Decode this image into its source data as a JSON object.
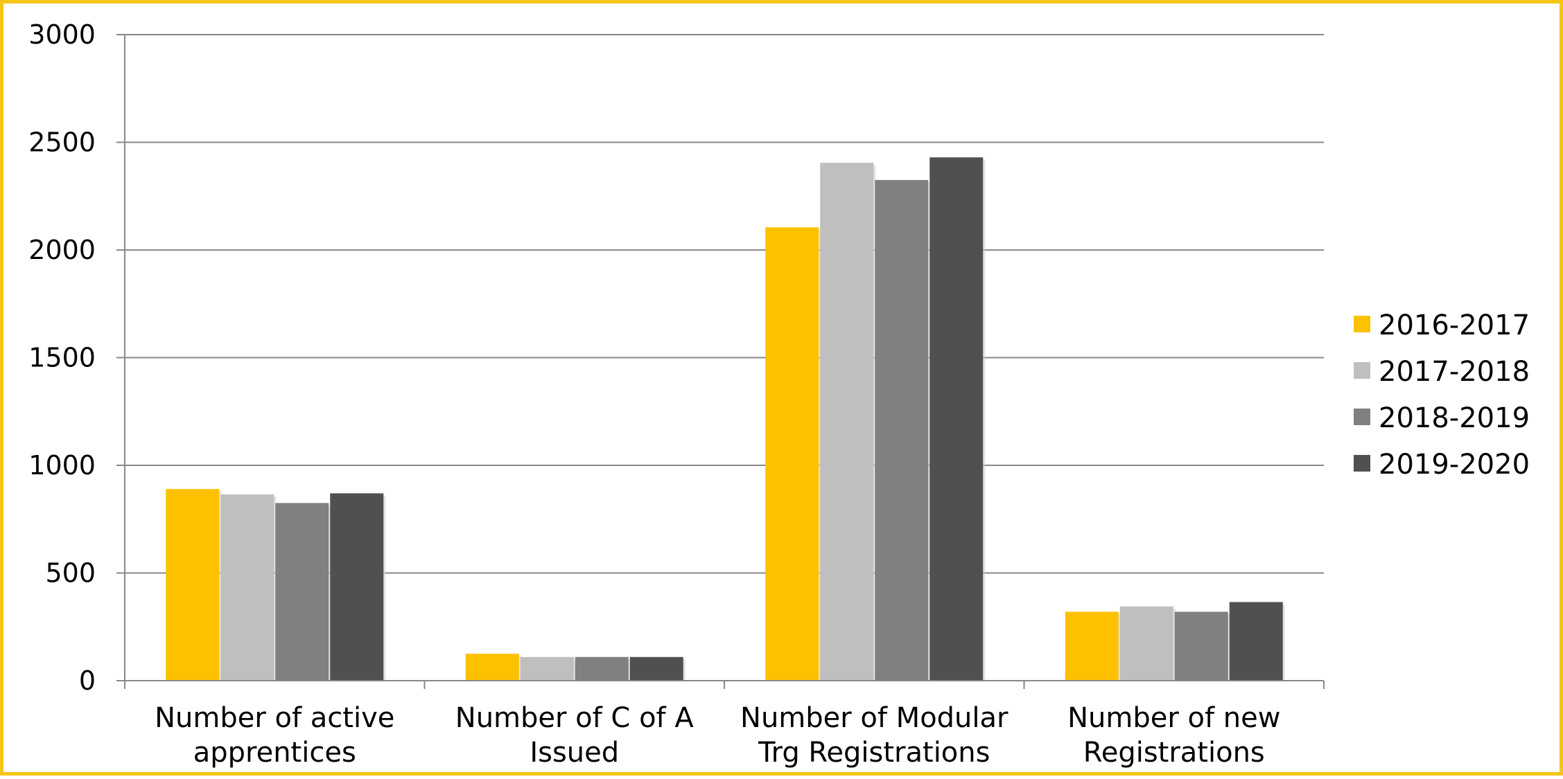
{
  "chart_data": {
    "type": "bar",
    "title": "",
    "xlabel": "",
    "ylabel": "",
    "ylim": [
      0,
      3000
    ],
    "yticks": [
      0,
      500,
      1000,
      1500,
      2000,
      2500,
      3000
    ],
    "grid": true,
    "legend_position": "right",
    "categories": [
      [
        "Number of active",
        "apprentices"
      ],
      [
        "Number of C of A",
        "Issued"
      ],
      [
        "Number of Modular",
        "Trg Registrations"
      ],
      [
        "Number of new",
        "Registrations"
      ]
    ],
    "series": [
      {
        "name": "2016-2017",
        "color": "#fdc100",
        "values": [
          890,
          125,
          2105,
          320
        ]
      },
      {
        "name": "2017-2018",
        "color": "#bfbfbf",
        "values": [
          865,
          110,
          2405,
          345
        ]
      },
      {
        "name": "2018-2019",
        "color": "#808080",
        "values": [
          825,
          110,
          2325,
          320
        ]
      },
      {
        "name": "2019-2020",
        "color": "#505050",
        "values": [
          870,
          110,
          2430,
          365
        ]
      }
    ],
    "colors": {
      "border": "#f5c518",
      "gridline": "#888888",
      "axis": "#888888"
    }
  }
}
